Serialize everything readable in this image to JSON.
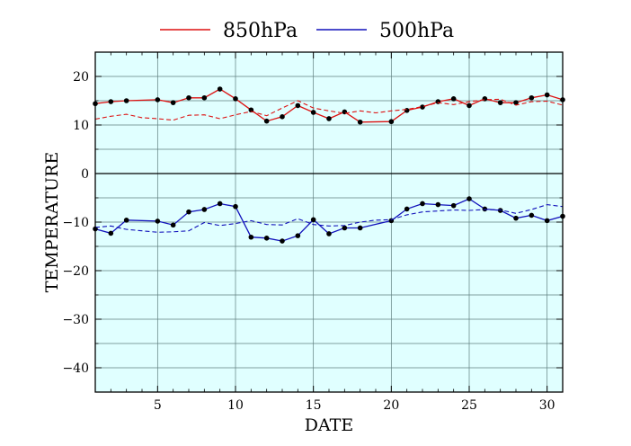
{
  "chart_data": {
    "type": "line",
    "xlabel": "DATE",
    "ylabel": "TEMPERATURE",
    "xlim": [
      1,
      31
    ],
    "ylim": [
      -45,
      25
    ],
    "xticks": [
      5,
      10,
      15,
      20,
      25,
      30
    ],
    "yticks": [
      20,
      10,
      0,
      -10,
      -20,
      -30,
      -40
    ],
    "ytick_labels": [
      "20",
      "10",
      "0",
      "−10",
      "−20",
      "−30",
      "−40"
    ],
    "grid": true,
    "zero_line": true,
    "background_color": "#e0ffff",
    "legend_position": "top-center",
    "series": [
      {
        "name": "850hPa",
        "color": "#dd1111",
        "style": "solid",
        "markers": true,
        "x": [
          1,
          2,
          3,
          5,
          6,
          7,
          8,
          9,
          10,
          11,
          12,
          13,
          14,
          15,
          16,
          17,
          18,
          20,
          21,
          22,
          23,
          24,
          25,
          26,
          27,
          28,
          29,
          30,
          31
        ],
        "values": [
          14.4,
          14.8,
          15.0,
          15.2,
          14.6,
          15.6,
          15.6,
          17.4,
          15.4,
          13.1,
          10.8,
          11.7,
          14.0,
          12.6,
          11.3,
          12.7,
          10.6,
          10.7,
          13.0,
          13.7,
          14.8,
          15.4,
          14.0,
          15.4,
          14.6,
          14.6,
          15.6,
          16.2,
          15.2
        ]
      },
      {
        "name": "",
        "color": "#dd1111",
        "style": "dashed",
        "markers": false,
        "x": [
          1,
          2,
          3,
          4,
          5,
          6,
          7,
          8,
          9,
          10,
          11,
          12,
          13,
          14,
          15,
          16,
          17,
          18,
          19,
          20,
          21,
          22,
          23,
          24,
          25,
          26,
          27,
          28,
          29,
          30,
          31
        ],
        "values": [
          11.2,
          11.8,
          12.2,
          11.5,
          11.3,
          11.0,
          12.0,
          12.1,
          11.3,
          12.1,
          12.8,
          11.9,
          13.5,
          15.0,
          13.5,
          12.9,
          12.4,
          12.9,
          12.5,
          12.9,
          13.2,
          13.8,
          14.6,
          14.2,
          14.8,
          15.2,
          15.3,
          14.1,
          14.8,
          14.9,
          14.1
        ]
      },
      {
        "name": "500hPa",
        "color": "#1111bb",
        "style": "solid",
        "markers": true,
        "x": [
          1,
          2,
          3,
          5,
          6,
          7,
          8,
          9,
          10,
          11,
          12,
          13,
          14,
          15,
          16,
          17,
          18,
          20,
          21,
          22,
          23,
          24,
          25,
          26,
          27,
          28,
          29,
          30,
          31
        ],
        "values": [
          -11.4,
          -12.3,
          -9.6,
          -9.8,
          -10.6,
          -7.9,
          -7.4,
          -6.2,
          -6.8,
          -13.1,
          -13.3,
          -13.9,
          -12.8,
          -9.5,
          -12.4,
          -11.2,
          -11.2,
          -9.7,
          -7.3,
          -6.2,
          -6.4,
          -6.6,
          -5.2,
          -7.3,
          -7.6,
          -9.2,
          -8.6,
          -9.7,
          -8.8
        ]
      },
      {
        "name": "",
        "color": "#1111bb",
        "style": "dashed",
        "markers": false,
        "x": [
          1,
          2,
          3,
          4,
          5,
          6,
          7,
          8,
          9,
          10,
          11,
          12,
          13,
          14,
          15,
          16,
          17,
          18,
          19,
          20,
          21,
          22,
          23,
          24,
          25,
          26,
          27,
          28,
          29,
          30,
          31
        ],
        "values": [
          -11.1,
          -10.8,
          -11.5,
          -11.8,
          -12.1,
          -12.0,
          -11.8,
          -10.1,
          -10.7,
          -10.3,
          -9.7,
          -10.5,
          -10.6,
          -9.3,
          -10.5,
          -10.8,
          -10.7,
          -10.0,
          -9.6,
          -9.5,
          -8.5,
          -7.9,
          -7.7,
          -7.5,
          -7.6,
          -7.4,
          -7.5,
          -8.2,
          -7.4,
          -6.4,
          -6.8
        ]
      }
    ]
  }
}
